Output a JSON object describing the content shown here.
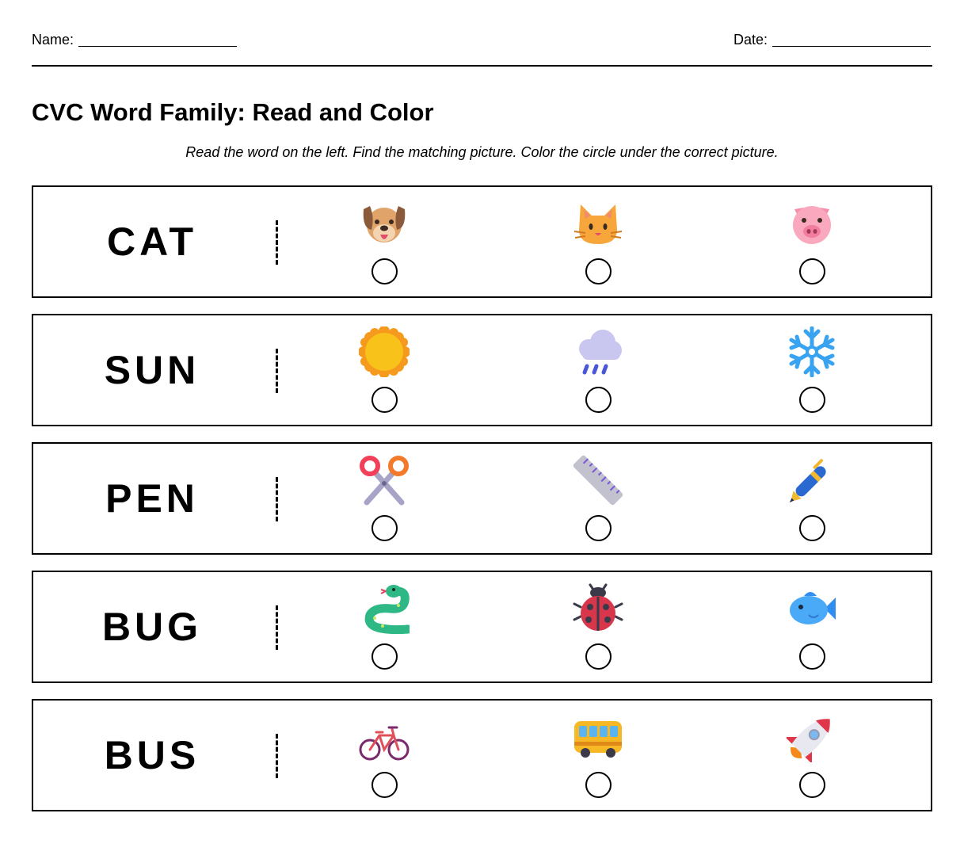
{
  "header": {
    "name_label": "Name:",
    "date_label": "Date:"
  },
  "title": "CVC Word Family: Read and Color",
  "instructions": "Read the word on the left. Find the matching picture. Color the circle under the correct picture.",
  "rows": [
    {
      "word": "CAT",
      "pictures": [
        "dog-face-icon",
        "cat-face-icon",
        "pig-face-icon"
      ]
    },
    {
      "word": "SUN",
      "pictures": [
        "sun-icon",
        "rain-cloud-icon",
        "snowflake-icon"
      ]
    },
    {
      "word": "PEN",
      "pictures": [
        "scissors-icon",
        "ruler-icon",
        "pen-icon"
      ]
    },
    {
      "word": "BUG",
      "pictures": [
        "snake-icon",
        "ladybug-icon",
        "fish-icon"
      ]
    },
    {
      "word": "BUS",
      "pictures": [
        "bicycle-icon",
        "bus-icon",
        "rocket-icon"
      ]
    }
  ]
}
